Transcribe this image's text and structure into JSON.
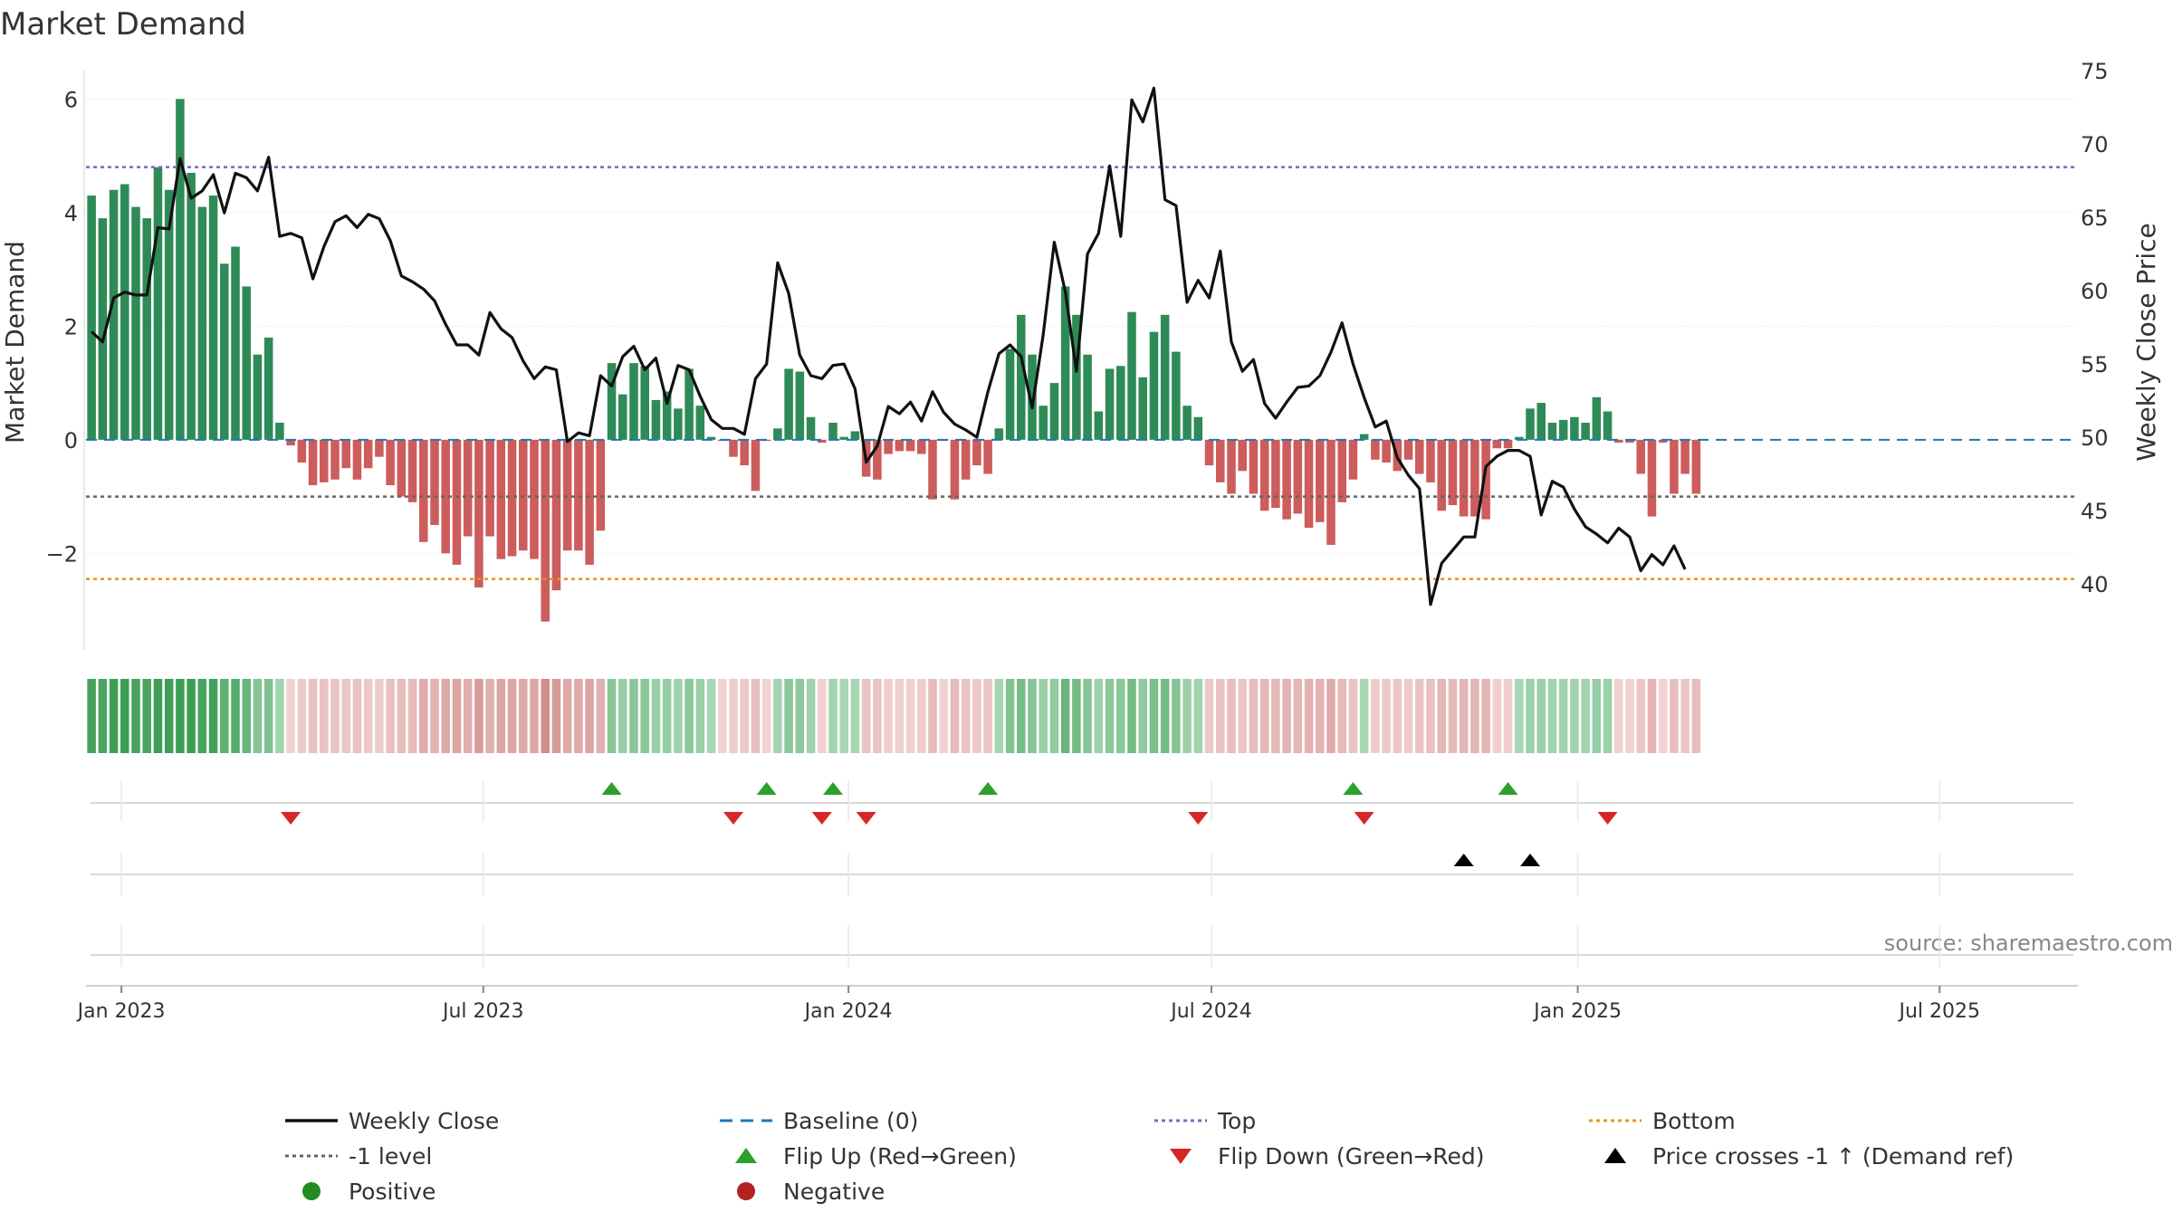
{
  "chart_data": {
    "type": "bar+line",
    "title": "Market Demand",
    "ylabel_left": "Market Demand",
    "ylabel_right": "Weekly Close Price",
    "ylim_left": [
      -3.7,
      6.5
    ],
    "ylim_right": [
      35.5,
      75
    ],
    "yticks_left": [
      6,
      4,
      2,
      0,
      -2
    ],
    "yticks_left_labels": [
      "6",
      "4",
      "2",
      "0",
      "−2"
    ],
    "yticks_right": [
      75,
      70,
      65,
      60,
      55,
      50,
      45,
      40
    ],
    "reference_levels": {
      "top": 4.8,
      "minus_one": -1,
      "bottom": -2.45,
      "baseline": 0
    },
    "x_range": [
      -0.5,
      179.5
    ],
    "x_ticks": [
      {
        "label": "Jan 2023",
        "index": 2.7
      },
      {
        "label": "Jul 2023",
        "index": 35.4
      },
      {
        "label": "Jan 2024",
        "index": 68.4
      },
      {
        "label": "Jul 2024",
        "index": 101.2
      },
      {
        "label": "Jan 2025",
        "index": 134.3
      },
      {
        "label": "Jul 2025",
        "index": 167.0
      }
    ],
    "demand": [
      4.3,
      3.9,
      4.4,
      4.5,
      4.1,
      3.9,
      4.8,
      4.4,
      6.0,
      4.7,
      4.1,
      4.3,
      3.1,
      3.4,
      2.7,
      1.5,
      1.8,
      0.3,
      -0.1,
      -0.4,
      -0.8,
      -0.75,
      -0.7,
      -0.5,
      -0.7,
      -0.5,
      -0.3,
      -0.8,
      -1.0,
      -1.1,
      -1.8,
      -1.5,
      -2.0,
      -2.2,
      -1.7,
      -2.6,
      -1.7,
      -2.1,
      -2.05,
      -1.95,
      -2.1,
      -3.2,
      -2.65,
      -1.95,
      -1.95,
      -2.2,
      -1.6,
      1.35,
      0.8,
      1.35,
      1.3,
      0.7,
      0.85,
      0.55,
      1.25,
      0.6,
      0.05,
      -0.02,
      -0.3,
      -0.45,
      -0.9,
      -0.02,
      0.2,
      1.25,
      1.2,
      0.4,
      -0.05,
      0.3,
      0.05,
      0.15,
      -0.65,
      -0.7,
      -0.25,
      -0.2,
      -0.2,
      -0.25,
      -1.05,
      -0.02,
      -1.05,
      -0.7,
      -0.45,
      -0.6,
      0.2,
      1.6,
      2.2,
      1.5,
      0.6,
      1.0,
      2.7,
      2.2,
      1.5,
      0.5,
      1.25,
      1.3,
      2.25,
      1.1,
      1.9,
      2.2,
      1.55,
      0.6,
      0.4,
      -0.45,
      -0.75,
      -0.95,
      -0.55,
      -0.95,
      -1.25,
      -1.2,
      -1.4,
      -1.3,
      -1.55,
      -1.45,
      -1.85,
      -1.1,
      -0.7,
      0.1,
      -0.35,
      -0.4,
      -0.55,
      -0.35,
      -0.6,
      -0.75,
      -1.25,
      -1.15,
      -1.35,
      -1.35,
      -1.4,
      -0.15,
      -0.15,
      0.05,
      0.55,
      0.65,
      0.3,
      0.35,
      0.4,
      0.3,
      0.75,
      0.5,
      -0.05,
      -0.05,
      -0.6,
      -1.35,
      -0.05,
      -0.95,
      -0.6,
      -0.95
    ],
    "weekly_close": [
      57.2,
      56.5,
      59.5,
      59.9,
      59.7,
      59.7,
      64.3,
      64.2,
      69.0,
      66.3,
      66.8,
      67.9,
      65.3,
      68.0,
      67.7,
      66.8,
      69.1,
      63.7,
      63.9,
      63.6,
      60.8,
      63.0,
      64.7,
      65.1,
      64.3,
      65.2,
      64.9,
      63.4,
      61.0,
      60.6,
      60.1,
      59.3,
      57.7,
      56.3,
      56.3,
      55.6,
      58.5,
      57.4,
      56.8,
      55.2,
      54.0,
      54.8,
      54.6,
      49.7,
      50.3,
      50.1,
      54.2,
      53.5,
      55.5,
      56.2,
      54.6,
      55.4,
      52.3,
      54.9,
      54.6,
      52.8,
      51.2,
      50.6,
      50.6,
      50.2,
      54.0,
      55.0,
      61.9,
      59.8,
      55.6,
      54.2,
      54.0,
      54.9,
      55.0,
      53.3,
      48.3,
      49.4,
      52.1,
      51.6,
      52.4,
      51.1,
      53.1,
      51.7,
      50.9,
      50.5,
      50.0,
      53.1,
      55.7,
      56.3,
      55.5,
      52.0,
      57.0,
      63.3,
      59.9,
      54.5,
      62.5,
      63.9,
      68.5,
      63.7,
      73.0,
      71.5,
      73.8,
      66.2,
      65.8,
      59.2,
      60.7,
      59.5,
      62.7,
      56.5,
      54.5,
      55.3,
      52.3,
      51.3,
      52.4,
      53.4,
      53.5,
      54.2,
      55.8,
      57.8,
      55.0,
      52.7,
      50.7,
      51.1,
      48.6,
      47.4,
      46.5,
      38.6,
      41.4,
      42.3,
      43.2,
      43.2,
      48.0,
      48.7,
      49.1,
      49.1,
      48.7,
      44.7,
      47.0,
      46.6,
      45.1,
      43.9,
      43.4,
      42.8,
      43.8,
      43.2,
      40.9,
      42.0,
      41.3,
      42.6,
      41.0
    ],
    "flip_up_indices": [
      47,
      61,
      67,
      81,
      114,
      128
    ],
    "flip_down_indices": [
      18,
      58,
      66,
      70,
      100,
      115,
      137
    ],
    "price_cross_indices": [
      124,
      130
    ],
    "source": "source: sharemaestro.com",
    "colors": {
      "positive_bar": "#2e8b57",
      "negative_bar": "#cd5c5c",
      "price_line": "#111111",
      "baseline": "#1f77b4",
      "top": "#7b68c8",
      "minus_one": "#666666",
      "bottom": "#e6951e",
      "flip_up": "#2ca02c",
      "flip_down": "#d62728",
      "price_cross": "#000000",
      "positive_dot": "#228b22",
      "negative_dot": "#b22222"
    },
    "legend": [
      {
        "label": "Weekly Close",
        "key": "price_line",
        "shape": "line"
      },
      {
        "label": "Baseline (0)",
        "key": "baseline",
        "shape": "dash"
      },
      {
        "label": "Top",
        "key": "top",
        "shape": "dot"
      },
      {
        "label": "Bottom",
        "key": "bottom",
        "shape": "dot"
      },
      {
        "label": "-1 level",
        "key": "minus_one",
        "shape": "dot"
      },
      {
        "label": "Flip Up (Red→Green)",
        "key": "flip_up",
        "shape": "tri-up"
      },
      {
        "label": "Flip Down (Green→Red)",
        "key": "flip_down",
        "shape": "tri-down"
      },
      {
        "label": "Price crosses -1 ↑ (Demand ref)",
        "key": "price_cross",
        "shape": "tri-up"
      },
      {
        "label": "Positive",
        "key": "positive_dot",
        "shape": "circle"
      },
      {
        "label": "Negative",
        "key": "negative_dot",
        "shape": "circle"
      }
    ]
  }
}
